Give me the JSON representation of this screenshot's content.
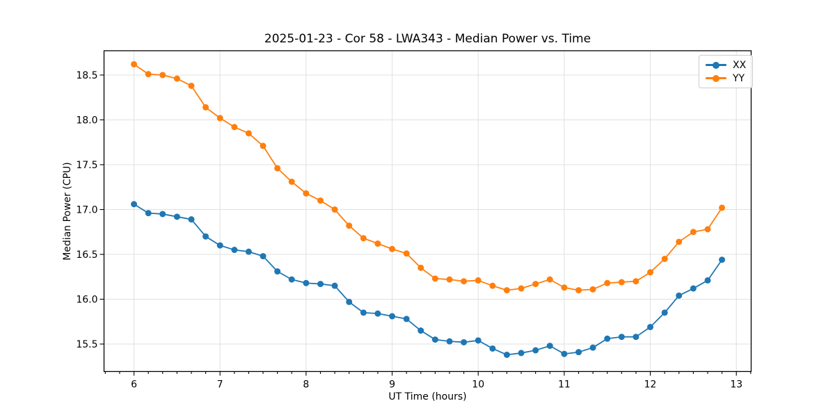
{
  "chart_data": {
    "type": "line",
    "title": "2025-01-23 - Cor 58 - LWA343 - Median Power vs. Time",
    "xlabel": "UT Time (hours)",
    "ylabel": "Median Power (CPU)",
    "xlim": [
      5.652,
      13.172
    ],
    "ylim": [
      15.194,
      18.771
    ],
    "x_ticks": [
      6,
      7,
      8,
      9,
      10,
      11,
      12,
      13
    ],
    "y_ticks": [
      15.5,
      16.0,
      16.5,
      17.0,
      17.5,
      18.0,
      18.5
    ],
    "x_minor_subdivisions_per_hour": 6,
    "grid": true,
    "grid_color": "#e0e0e0",
    "axis_color": "#000000",
    "legend_position": "upper right",
    "x": [
      6.0,
      6.167,
      6.333,
      6.5,
      6.667,
      6.833,
      7.0,
      7.167,
      7.333,
      7.5,
      7.667,
      7.833,
      8.0,
      8.167,
      8.333,
      8.5,
      8.667,
      8.833,
      9.0,
      9.167,
      9.333,
      9.5,
      9.667,
      9.833,
      10.0,
      10.167,
      10.333,
      10.5,
      10.667,
      10.833,
      11.0,
      11.167,
      11.333,
      11.5,
      11.667,
      11.833,
      12.0,
      12.167,
      12.333,
      12.5,
      12.667,
      12.833
    ],
    "series": [
      {
        "name": "XX",
        "color": "#1f77b4",
        "values": [
          17.06,
          16.96,
          16.95,
          16.92,
          16.89,
          16.7,
          16.6,
          16.55,
          16.53,
          16.48,
          16.31,
          16.22,
          16.18,
          16.17,
          16.15,
          15.97,
          15.85,
          15.84,
          15.81,
          15.78,
          15.65,
          15.55,
          15.53,
          15.52,
          15.54,
          15.45,
          15.38,
          15.4,
          15.43,
          15.48,
          15.39,
          15.41,
          15.46,
          15.56,
          15.58,
          15.58,
          15.69,
          15.85,
          16.04,
          16.12,
          16.21,
          16.44
        ]
      },
      {
        "name": "YY",
        "color": "#ff7f0e",
        "values": [
          18.62,
          18.51,
          18.5,
          18.46,
          18.38,
          18.14,
          18.02,
          17.92,
          17.85,
          17.71,
          17.46,
          17.31,
          17.18,
          17.1,
          17.0,
          16.82,
          16.68,
          16.62,
          16.56,
          16.51,
          16.35,
          16.23,
          16.22,
          16.2,
          16.21,
          16.15,
          16.1,
          16.12,
          16.17,
          16.22,
          16.13,
          16.1,
          16.11,
          16.18,
          16.19,
          16.2,
          16.3,
          16.45,
          16.64,
          16.75,
          16.78,
          17.02
        ]
      }
    ]
  }
}
